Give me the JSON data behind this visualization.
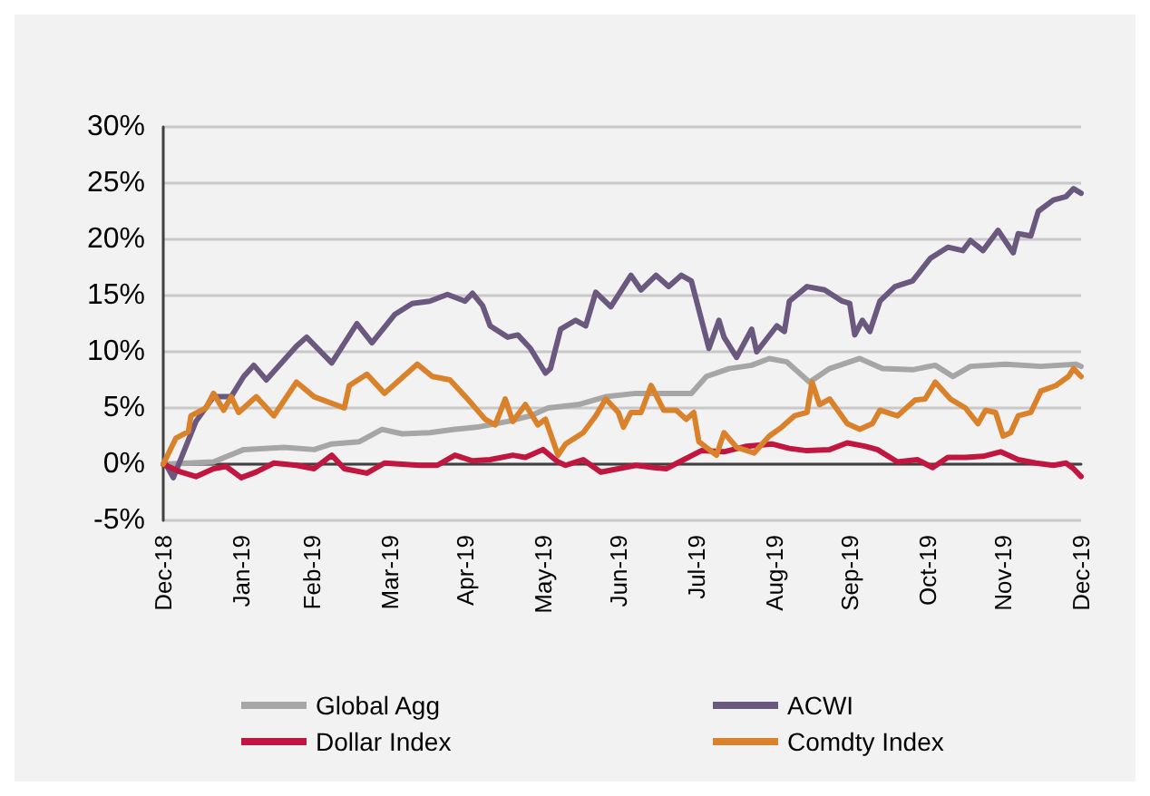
{
  "chart_data": {
    "type": "line",
    "legend": "bottom",
    "grid": "y",
    "line_style": "solid",
    "marker": "none",
    "xlim": [
      "2018-12-31",
      "2019-12-31"
    ],
    "xticks": [
      {
        "value": "2018-12-31",
        "label": "Dec-18"
      },
      {
        "value": "2019-01-31",
        "label": "Jan-19"
      },
      {
        "value": "2019-02-28",
        "label": "Feb-19"
      },
      {
        "value": "2019-03-31",
        "label": "Mar-19"
      },
      {
        "value": "2019-04-30",
        "label": "Apr-19"
      },
      {
        "value": "2019-05-31",
        "label": "May-19"
      },
      {
        "value": "2019-06-30",
        "label": "Jun-19"
      },
      {
        "value": "2019-07-31",
        "label": "Jul-19"
      },
      {
        "value": "2019-08-31",
        "label": "Aug-19"
      },
      {
        "value": "2019-09-30",
        "label": "Sep-19"
      },
      {
        "value": "2019-10-31",
        "label": "Oct-19"
      },
      {
        "value": "2019-11-30",
        "label": "Nov-19"
      },
      {
        "value": "2019-12-31",
        "label": "Dec-19"
      }
    ],
    "ylim": [
      -5,
      30
    ],
    "yticks": [
      {
        "value": -5,
        "label": "-5%"
      },
      {
        "value": 0,
        "label": "0%"
      },
      {
        "value": 5,
        "label": "5%"
      },
      {
        "value": 10,
        "label": "10%"
      },
      {
        "value": 15,
        "label": "15%"
      },
      {
        "value": 20,
        "label": "20%"
      },
      {
        "value": 25,
        "label": "25%"
      },
      {
        "value": 30,
        "label": "30%"
      }
    ],
    "series": [
      {
        "name": "Global Agg",
        "color": "#a6a6a6",
        "x": [
          "2018-12-31",
          "2019-01-20",
          "2019-02-01",
          "2019-02-17",
          "2019-03-01",
          "2019-03-08",
          "2019-03-19",
          "2019-03-28",
          "2019-04-05",
          "2019-04-16",
          "2019-04-26",
          "2019-05-05",
          "2019-05-17",
          "2019-05-26",
          "2019-06-02",
          "2019-06-14",
          "2019-06-25",
          "2019-07-07",
          "2019-07-19",
          "2019-07-29",
          "2019-08-04",
          "2019-08-13",
          "2019-08-22",
          "2019-08-29",
          "2019-09-05",
          "2019-09-14",
          "2019-09-22",
          "2019-10-04",
          "2019-10-13",
          "2019-10-25",
          "2019-11-03",
          "2019-11-10",
          "2019-11-17",
          "2019-12-01",
          "2019-12-15",
          "2019-12-29",
          "2019-12-31"
        ],
        "values": [
          0,
          0.2,
          1.3,
          1.5,
          1.3,
          1.8,
          2.0,
          3.1,
          2.7,
          2.8,
          3.1,
          3.3,
          3.8,
          4.3,
          5.0,
          5.3,
          6.0,
          6.3,
          6.3,
          6.3,
          7.8,
          8.5,
          8.8,
          9.4,
          9.1,
          7.3,
          8.5,
          9.4,
          8.5,
          8.4,
          8.8,
          7.8,
          8.7,
          8.9,
          8.7,
          8.9,
          8.7
        ]
      },
      {
        "name": "ACWI",
        "color": "#6b587e",
        "x": [
          "2018-12-31",
          "2019-01-01",
          "2019-01-04",
          "2019-01-13",
          "2019-01-20",
          "2019-01-27",
          "2019-02-01",
          "2019-02-05",
          "2019-02-10",
          "2019-02-22",
          "2019-02-26",
          "2019-03-08",
          "2019-03-18",
          "2019-03-24",
          "2019-04-02",
          "2019-04-09",
          "2019-04-16",
          "2019-04-23",
          "2019-04-30",
          "2019-05-03",
          "2019-05-07",
          "2019-05-10",
          "2019-05-17",
          "2019-05-21",
          "2019-05-26",
          "2019-06-01",
          "2019-06-03",
          "2019-06-07",
          "2019-06-13",
          "2019-06-17",
          "2019-06-21",
          "2019-06-27",
          "2019-07-05",
          "2019-07-09",
          "2019-07-15",
          "2019-07-20",
          "2019-07-25",
          "2019-07-29",
          "2019-08-05",
          "2019-08-09",
          "2019-08-11",
          "2019-08-16",
          "2019-08-22",
          "2019-08-24",
          "2019-09-01",
          "2019-09-04",
          "2019-09-06",
          "2019-09-13",
          "2019-09-20",
          "2019-09-27",
          "2019-09-30",
          "2019-10-02",
          "2019-10-05",
          "2019-10-08",
          "2019-10-12",
          "2019-10-18",
          "2019-10-25",
          "2019-11-01",
          "2019-11-08",
          "2019-11-14",
          "2019-11-17",
          "2019-11-22",
          "2019-11-28",
          "2019-12-04",
          "2019-12-06",
          "2019-12-11",
          "2019-12-14",
          "2019-12-20",
          "2019-12-25",
          "2019-12-28",
          "2019-12-31"
        ],
        "values": [
          0,
          0,
          -1.2,
          3.8,
          6.0,
          6.0,
          7.8,
          8.8,
          7.5,
          10.5,
          11.3,
          9.0,
          12.5,
          10.8,
          13.3,
          14.3,
          14.5,
          15.1,
          14.5,
          15.2,
          14.1,
          12.3,
          11.3,
          11.5,
          10.3,
          8.1,
          8.5,
          12.0,
          12.8,
          12.3,
          15.3,
          14.0,
          16.8,
          15.5,
          16.8,
          15.8,
          16.8,
          16.3,
          10.3,
          12.8,
          11.3,
          9.5,
          12.0,
          10.0,
          12.3,
          11.8,
          14.5,
          15.8,
          15.5,
          14.5,
          14.3,
          11.5,
          12.8,
          11.8,
          14.5,
          15.8,
          16.3,
          18.3,
          19.3,
          19.0,
          19.9,
          19.0,
          20.8,
          18.8,
          20.5,
          20.3,
          22.5,
          23.5,
          23.8,
          24.5,
          24.1
        ]
      },
      {
        "name": "Dollar Index",
        "color": "#c0163f",
        "x": [
          "2018-12-31",
          "2019-01-07",
          "2019-01-13",
          "2019-01-20",
          "2019-01-25",
          "2019-01-31",
          "2019-02-06",
          "2019-02-13",
          "2019-02-22",
          "2019-03-01",
          "2019-03-08",
          "2019-03-13",
          "2019-03-22",
          "2019-03-29",
          "2019-04-12",
          "2019-04-19",
          "2019-04-26",
          "2019-05-03",
          "2019-05-10",
          "2019-05-19",
          "2019-05-24",
          "2019-05-31",
          "2019-06-06",
          "2019-06-09",
          "2019-06-16",
          "2019-06-23",
          "2019-06-30",
          "2019-07-07",
          "2019-07-14",
          "2019-07-19",
          "2019-07-26",
          "2019-08-02",
          "2019-08-11",
          "2019-08-20",
          "2019-08-30",
          "2019-09-06",
          "2019-09-13",
          "2019-09-22",
          "2019-09-29",
          "2019-10-06",
          "2019-10-11",
          "2019-10-19",
          "2019-10-27",
          "2019-11-02",
          "2019-11-08",
          "2019-11-15",
          "2019-11-22",
          "2019-11-29",
          "2019-12-06",
          "2019-12-13",
          "2019-12-20",
          "2019-12-25",
          "2019-12-28",
          "2019-12-31"
        ],
        "values": [
          0,
          -0.7,
          -1.1,
          -0.4,
          -0.2,
          -1.2,
          -0.7,
          0.1,
          -0.1,
          -0.4,
          0.8,
          -0.4,
          -0.8,
          0.1,
          -0.1,
          -0.1,
          0.8,
          0.3,
          0.4,
          0.8,
          0.6,
          1.3,
          0.2,
          -0.1,
          0.4,
          -0.7,
          -0.4,
          -0.1,
          -0.3,
          -0.4,
          0.4,
          1.2,
          1.1,
          1.6,
          1.8,
          1.4,
          1.2,
          1.3,
          1.9,
          1.6,
          1.3,
          0.2,
          0.4,
          -0.3,
          0.6,
          0.6,
          0.7,
          1.1,
          0.4,
          0.1,
          -0.1,
          0.1,
          -0.4,
          -1.1
        ]
      },
      {
        "name": "Comdty Index",
        "color": "#d9822b",
        "x": [
          "2018-12-31",
          "2019-01-05",
          "2019-01-10",
          "2019-01-11",
          "2019-01-17",
          "2019-01-20",
          "2019-01-24",
          "2019-01-27",
          "2019-01-30",
          "2019-02-06",
          "2019-02-13",
          "2019-02-22",
          "2019-03-01",
          "2019-03-13",
          "2019-03-15",
          "2019-03-22",
          "2019-03-29",
          "2019-04-03",
          "2019-04-11",
          "2019-04-17",
          "2019-04-24",
          "2019-05-01",
          "2019-05-08",
          "2019-05-12",
          "2019-05-16",
          "2019-05-19",
          "2019-05-24",
          "2019-05-29",
          "2019-06-01",
          "2019-06-06",
          "2019-06-09",
          "2019-06-16",
          "2019-06-21",
          "2019-06-25",
          "2019-06-30",
          "2019-07-02",
          "2019-07-05",
          "2019-07-09",
          "2019-07-13",
          "2019-07-18",
          "2019-07-23",
          "2019-07-27",
          "2019-07-30",
          "2019-08-01",
          "2019-08-08",
          "2019-08-11",
          "2019-08-16",
          "2019-08-23",
          "2019-08-29",
          "2019-09-03",
          "2019-09-08",
          "2019-09-13",
          "2019-09-15",
          "2019-09-18",
          "2019-09-22",
          "2019-09-29",
          "2019-10-04",
          "2019-10-09",
          "2019-10-12",
          "2019-10-19",
          "2019-10-26",
          "2019-10-30",
          "2019-11-03",
          "2019-11-09",
          "2019-11-15",
          "2019-11-20",
          "2019-11-23",
          "2019-11-27",
          "2019-11-30",
          "2019-12-03",
          "2019-12-06",
          "2019-12-11",
          "2019-12-15",
          "2019-12-21",
          "2019-12-26",
          "2019-12-28",
          "2019-12-31"
        ],
        "values": [
          0,
          2.3,
          2.9,
          4.3,
          5.0,
          6.3,
          4.8,
          6.0,
          4.6,
          6.0,
          4.3,
          7.3,
          6.0,
          5.0,
          7.0,
          8.0,
          6.3,
          7.3,
          8.9,
          7.8,
          7.5,
          5.8,
          4.0,
          3.5,
          5.8,
          3.8,
          5.3,
          3.5,
          4.0,
          0.8,
          1.8,
          2.8,
          4.3,
          5.8,
          4.6,
          3.3,
          4.6,
          4.6,
          7.0,
          4.8,
          4.8,
          4.0,
          4.6,
          2.0,
          0.8,
          2.8,
          1.5,
          1.0,
          2.5,
          3.3,
          4.3,
          4.6,
          7.3,
          5.3,
          5.8,
          3.6,
          3.1,
          3.6,
          4.8,
          4.3,
          5.7,
          5.8,
          7.3,
          5.8,
          5.0,
          3.6,
          4.8,
          4.6,
          2.5,
          2.8,
          4.3,
          4.6,
          6.5,
          7.0,
          7.8,
          8.5,
          7.8
        ]
      }
    ]
  }
}
